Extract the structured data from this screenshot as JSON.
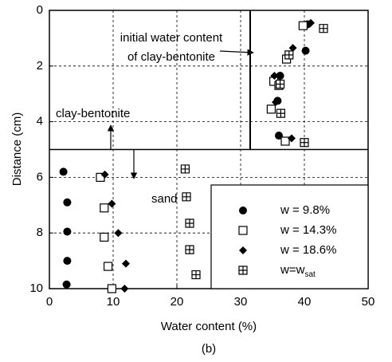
{
  "chart_data": {
    "type": "scatter",
    "x_label": "Water content (%)",
    "y_label": "Distance (cm)",
    "caption": "(b)",
    "xlim": [
      0,
      50
    ],
    "xticks": [
      0,
      10,
      20,
      30,
      40,
      50
    ],
    "ylim": [
      0,
      10
    ],
    "yticks": [
      0,
      2,
      4,
      6,
      8,
      10
    ],
    "invert_y": true,
    "grid": true,
    "legend": "lower right",
    "annotations": {
      "initial_line": [
        "initial water content",
        "of clay-bentonite"
      ],
      "upper_layer": "clay-bentonite",
      "lower_layer": "sand",
      "initial_water_content": 31.5,
      "boundary_depth": 5
    },
    "series": [
      {
        "name": "w = 9.8%",
        "marker": "circle",
        "color": "#000",
        "x": [
          40.5,
          40.2,
          36.2,
          35.8,
          36,
          2.2,
          2.8,
          2.8,
          2.8,
          2.7
        ],
        "values": [
          0.5,
          1.45,
          2.35,
          3.25,
          4.5,
          5.8,
          6.9,
          7.95,
          9.0,
          9.85
        ]
      },
      {
        "name": "w = 14.3%",
        "marker": "square",
        "color": "#000",
        "x": [
          39.8,
          37.2,
          35.2,
          36,
          34.8,
          37,
          8,
          8.6,
          8.6,
          9.2,
          9.8
        ],
        "values": [
          0.55,
          1.75,
          2.55,
          2.7,
          3.55,
          4.7,
          6.0,
          7.1,
          8.15,
          9.2,
          10.0
        ]
      },
      {
        "name": "w = 18.6%",
        "marker": "diamond",
        "color": "#000",
        "x": [
          41,
          38.2,
          35.3,
          35.5,
          38,
          8.7,
          9.8,
          10.8,
          12,
          11.8
        ],
        "values": [
          0.45,
          1.35,
          2.35,
          3.3,
          4.6,
          5.9,
          6.95,
          8.0,
          9.1,
          10.0
        ]
      },
      {
        "name": "w=w",
        "name_sub": "sat",
        "marker": "boxplus",
        "color": "#000",
        "x": [
          43,
          37.6,
          36.2,
          36.3,
          40,
          21.3,
          21.5,
          22,
          22,
          23
        ],
        "values": [
          0.65,
          1.6,
          2.65,
          3.7,
          4.75,
          5.7,
          6.7,
          7.65,
          8.6,
          9.5
        ]
      }
    ]
  }
}
